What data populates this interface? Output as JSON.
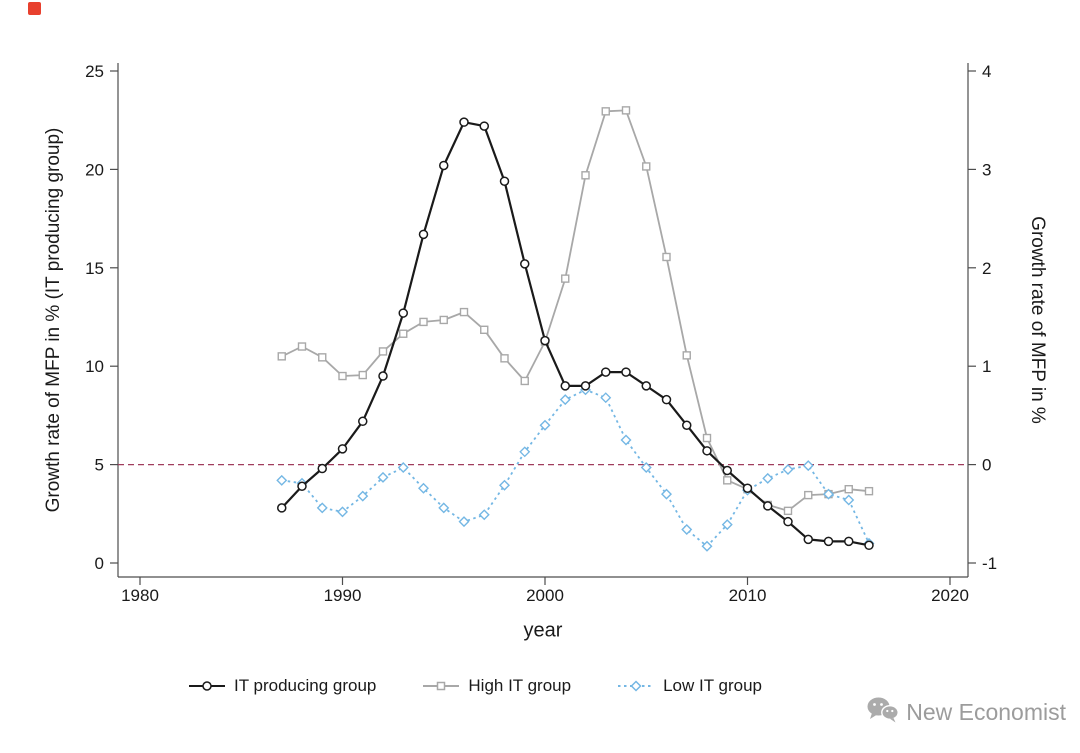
{
  "watermark": {
    "label": "New Economist"
  },
  "chart_data": {
    "type": "line",
    "title": "",
    "xlabel": "year",
    "ylabel_left": "Growth rate of MFP in % (IT producing group)",
    "ylabel_right": "Growth rate of MFP in %",
    "x_ticks": [
      1980,
      1990,
      2000,
      2010,
      2020
    ],
    "xlim": [
      1979,
      2021
    ],
    "left_ylim": [
      0,
      25
    ],
    "left_yticks": [
      0,
      5,
      10,
      15,
      20,
      25
    ],
    "right_ylim": [
      -1,
      4
    ],
    "right_yticks": [
      -1,
      0,
      1,
      2,
      3,
      4
    ],
    "grid": false,
    "legend_position": "bottom",
    "axis_color": "#4d4d4d",
    "ref_line": {
      "axis": "right",
      "value": 0,
      "style": "dashed",
      "color": "#a03d5d"
    },
    "years": [
      1987,
      1988,
      1989,
      1990,
      1991,
      1992,
      1993,
      1994,
      1995,
      1996,
      1997,
      1998,
      1999,
      2000,
      2001,
      2002,
      2003,
      2004,
      2005,
      2006,
      2007,
      2008,
      2009,
      2010,
      2011,
      2012,
      2013,
      2014,
      2015,
      2016
    ],
    "series": [
      {
        "name": "IT producing group",
        "axis": "left",
        "color": "#1a1a1a",
        "marker": "circle",
        "line": "solid",
        "values": [
          2.8,
          3.9,
          4.8,
          5.8,
          7.2,
          9.5,
          12.7,
          16.7,
          20.2,
          22.4,
          22.2,
          19.4,
          15.2,
          11.3,
          9.0,
          9.0,
          9.7,
          9.7,
          9.0,
          8.3,
          7.0,
          5.7,
          4.7,
          3.8,
          2.9,
          2.1,
          1.2,
          1.1,
          1.1,
          0.9
        ]
      },
      {
        "name": "High IT group",
        "axis": "right",
        "color": "#a8a8a8",
        "marker": "square",
        "line": "solid",
        "values": [
          1.1,
          1.2,
          1.09,
          0.9,
          0.91,
          1.15,
          1.33,
          1.45,
          1.47,
          1.55,
          1.37,
          1.08,
          0.85,
          1.25,
          1.89,
          2.94,
          3.59,
          3.6,
          3.03,
          2.11,
          1.11,
          0.27,
          -0.16,
          -0.25,
          -0.41,
          -0.47,
          -0.31,
          -0.3,
          -0.25,
          -0.27
        ]
      },
      {
        "name": "Low IT group",
        "axis": "right",
        "color": "#74b7e4",
        "marker": "diamond",
        "line": "dashed",
        "values": [
          -0.16,
          -0.19,
          -0.44,
          -0.48,
          -0.32,
          -0.13,
          -0.03,
          -0.24,
          -0.44,
          -0.58,
          -0.51,
          -0.21,
          0.13,
          0.4,
          0.66,
          0.76,
          0.68,
          0.25,
          -0.03,
          -0.3,
          -0.66,
          -0.83,
          -0.61,
          -0.26,
          -0.14,
          -0.05,
          -0.01,
          -0.3,
          -0.36,
          -0.8
        ]
      }
    ]
  }
}
